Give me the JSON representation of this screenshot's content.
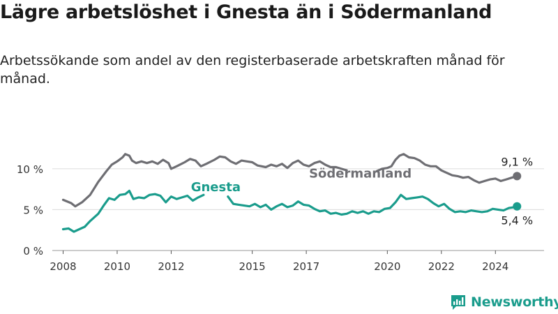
{
  "header": {
    "title": "Lägre arbetslöshet i Gnesta än i Södermanland",
    "subtitle": "Arbetssökande som andel av den registerbaserade arbetskraften månad för månad."
  },
  "brand": {
    "name": "Newsworthy",
    "color": "#1a9c8c",
    "icon": "newsworthy-logo-icon"
  },
  "chart_data": {
    "type": "line",
    "title": "Lägre arbetslöshet i Gnesta än i Södermanland",
    "subtitle": "Arbetssökande som andel av den registerbaserade arbetskraften månad för månad.",
    "xlabel": "",
    "ylabel": "",
    "ylim": [
      0,
      14
    ],
    "xlim": [
      2007.6,
      2025.8
    ],
    "grid": true,
    "x_ticks": [
      2008,
      2010,
      2012,
      2015,
      2017,
      2020,
      2022,
      2024
    ],
    "x_tick_labels": [
      "2008",
      "2010",
      "2012",
      "2015",
      "2017",
      "2020",
      "2022",
      "2024"
    ],
    "y_ticks": [
      0,
      5,
      10
    ],
    "y_tick_labels": [
      "0 %",
      "5 %",
      "10 %"
    ],
    "series": [
      {
        "name": "Södermanland",
        "color": "#6e6e73",
        "end_label": "9,1 %",
        "points": [
          [
            2008.0,
            6.2
          ],
          [
            2008.3,
            5.8
          ],
          [
            2008.45,
            5.4
          ],
          [
            2008.7,
            5.9
          ],
          [
            2009.0,
            6.8
          ],
          [
            2009.3,
            8.4
          ],
          [
            2009.6,
            9.7
          ],
          [
            2009.8,
            10.5
          ],
          [
            2010.0,
            10.9
          ],
          [
            2010.2,
            11.4
          ],
          [
            2010.3,
            11.8
          ],
          [
            2010.45,
            11.6
          ],
          [
            2010.55,
            11.0
          ],
          [
            2010.7,
            10.7
          ],
          [
            2010.9,
            10.9
          ],
          [
            2011.1,
            10.7
          ],
          [
            2011.3,
            10.9
          ],
          [
            2011.5,
            10.6
          ],
          [
            2011.7,
            11.1
          ],
          [
            2011.9,
            10.7
          ],
          [
            2012.0,
            10.0
          ],
          [
            2012.2,
            10.3
          ],
          [
            2012.5,
            10.8
          ],
          [
            2012.7,
            11.2
          ],
          [
            2012.9,
            11.0
          ],
          [
            2013.1,
            10.3
          ],
          [
            2013.3,
            10.6
          ],
          [
            2013.6,
            11.1
          ],
          [
            2013.8,
            11.5
          ],
          [
            2014.0,
            11.4
          ],
          [
            2014.2,
            10.9
          ],
          [
            2014.4,
            10.6
          ],
          [
            2014.6,
            11.0
          ],
          [
            2014.8,
            10.9
          ],
          [
            2015.0,
            10.8
          ],
          [
            2015.2,
            10.4
          ],
          [
            2015.5,
            10.2
          ],
          [
            2015.7,
            10.5
          ],
          [
            2015.9,
            10.3
          ],
          [
            2016.1,
            10.6
          ],
          [
            2016.3,
            10.1
          ],
          [
            2016.5,
            10.7
          ],
          [
            2016.7,
            11.0
          ],
          [
            2016.9,
            10.5
          ],
          [
            2017.1,
            10.3
          ],
          [
            2017.3,
            10.7
          ],
          [
            2017.5,
            10.9
          ],
          [
            2017.7,
            10.5
          ],
          [
            2017.9,
            10.2
          ],
          [
            2018.1,
            10.2
          ],
          [
            2018.3,
            10.0
          ],
          [
            2018.5,
            9.8
          ],
          [
            2019.6,
            9.7
          ],
          [
            2019.8,
            10.0
          ],
          [
            2020.0,
            10.1
          ],
          [
            2020.15,
            10.3
          ],
          [
            2020.3,
            11.1
          ],
          [
            2020.45,
            11.6
          ],
          [
            2020.6,
            11.8
          ],
          [
            2020.8,
            11.4
          ],
          [
            2021.0,
            11.3
          ],
          [
            2021.2,
            11.0
          ],
          [
            2021.4,
            10.5
          ],
          [
            2021.6,
            10.3
          ],
          [
            2021.8,
            10.3
          ],
          [
            2022.0,
            9.8
          ],
          [
            2022.2,
            9.5
          ],
          [
            2022.4,
            9.2
          ],
          [
            2022.6,
            9.1
          ],
          [
            2022.8,
            8.9
          ],
          [
            2023.0,
            9.0
          ],
          [
            2023.2,
            8.6
          ],
          [
            2023.4,
            8.3
          ],
          [
            2023.6,
            8.5
          ],
          [
            2023.8,
            8.7
          ],
          [
            2024.0,
            8.8
          ],
          [
            2024.2,
            8.5
          ],
          [
            2024.4,
            8.7
          ],
          [
            2024.6,
            8.9
          ],
          [
            2024.8,
            9.1
          ]
        ]
      },
      {
        "name": "Gnesta",
        "color": "#1a9c8c",
        "end_label": "5,4 %",
        "points": [
          [
            2008.0,
            2.6
          ],
          [
            2008.2,
            2.7
          ],
          [
            2008.4,
            2.3
          ],
          [
            2008.6,
            2.6
          ],
          [
            2008.8,
            2.9
          ],
          [
            2009.0,
            3.6
          ],
          [
            2009.3,
            4.5
          ],
          [
            2009.5,
            5.5
          ],
          [
            2009.7,
            6.4
          ],
          [
            2009.9,
            6.2
          ],
          [
            2010.1,
            6.8
          ],
          [
            2010.3,
            6.9
          ],
          [
            2010.45,
            7.3
          ],
          [
            2010.6,
            6.3
          ],
          [
            2010.8,
            6.5
          ],
          [
            2011.0,
            6.4
          ],
          [
            2011.2,
            6.8
          ],
          [
            2011.4,
            6.9
          ],
          [
            2011.6,
            6.7
          ],
          [
            2011.8,
            5.9
          ],
          [
            2012.0,
            6.6
          ],
          [
            2012.2,
            6.3
          ],
          [
            2012.4,
            6.5
          ],
          [
            2012.6,
            6.7
          ],
          [
            2012.8,
            6.1
          ],
          [
            2013.0,
            6.5
          ],
          [
            2013.2,
            6.8
          ],
          [
            2014.1,
            6.6
          ],
          [
            2014.3,
            5.7
          ],
          [
            2014.5,
            5.6
          ],
          [
            2014.7,
            5.5
          ],
          [
            2014.9,
            5.4
          ],
          [
            2015.1,
            5.7
          ],
          [
            2015.3,
            5.3
          ],
          [
            2015.5,
            5.6
          ],
          [
            2015.7,
            5.0
          ],
          [
            2015.9,
            5.4
          ],
          [
            2016.1,
            5.7
          ],
          [
            2016.3,
            5.3
          ],
          [
            2016.5,
            5.5
          ],
          [
            2016.7,
            6.0
          ],
          [
            2016.9,
            5.6
          ],
          [
            2017.1,
            5.5
          ],
          [
            2017.3,
            5.1
          ],
          [
            2017.5,
            4.8
          ],
          [
            2017.7,
            4.9
          ],
          [
            2017.9,
            4.5
          ],
          [
            2018.1,
            4.6
          ],
          [
            2018.3,
            4.4
          ],
          [
            2018.5,
            4.5
          ],
          [
            2018.7,
            4.8
          ],
          [
            2018.9,
            4.6
          ],
          [
            2019.1,
            4.8
          ],
          [
            2019.3,
            4.5
          ],
          [
            2019.5,
            4.8
          ],
          [
            2019.7,
            4.7
          ],
          [
            2019.9,
            5.1
          ],
          [
            2020.1,
            5.2
          ],
          [
            2020.3,
            5.9
          ],
          [
            2020.5,
            6.8
          ],
          [
            2020.7,
            6.3
          ],
          [
            2020.9,
            6.4
          ],
          [
            2021.1,
            6.5
          ],
          [
            2021.3,
            6.6
          ],
          [
            2021.5,
            6.3
          ],
          [
            2021.7,
            5.8
          ],
          [
            2021.9,
            5.4
          ],
          [
            2022.1,
            5.7
          ],
          [
            2022.3,
            5.1
          ],
          [
            2022.5,
            4.7
          ],
          [
            2022.7,
            4.8
          ],
          [
            2022.9,
            4.7
          ],
          [
            2023.1,
            4.9
          ],
          [
            2023.3,
            4.8
          ],
          [
            2023.5,
            4.7
          ],
          [
            2023.7,
            4.8
          ],
          [
            2023.9,
            5.1
          ],
          [
            2024.1,
            5.0
          ],
          [
            2024.3,
            4.9
          ],
          [
            2024.5,
            5.2
          ],
          [
            2024.7,
            5.3
          ],
          [
            2024.8,
            5.4
          ]
        ]
      }
    ],
    "annotations": [
      {
        "text": "Gnesta",
        "series": "Gnesta"
      },
      {
        "text": "Södermanland",
        "series": "Södermanland"
      }
    ]
  }
}
